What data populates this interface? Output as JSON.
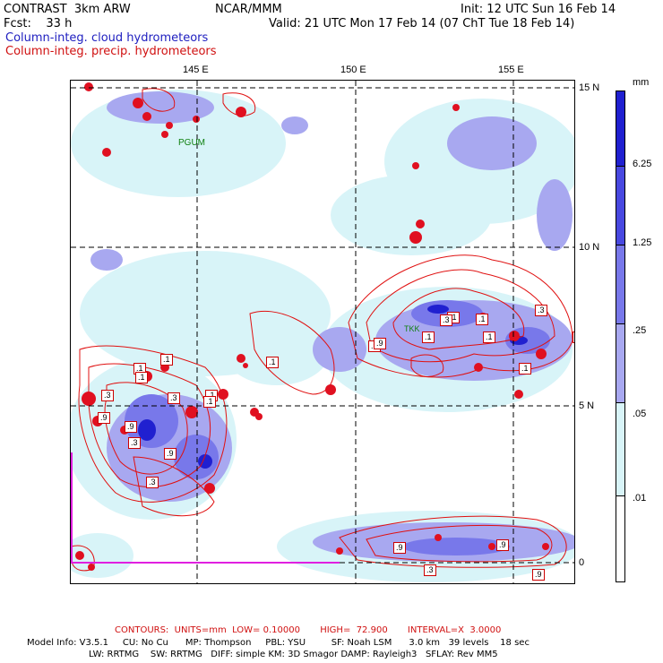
{
  "header": {
    "model": "CONTRAST  3km ARW",
    "org": "NCAR/MMM",
    "init": "Init: 12 UTC Sun 16 Feb 14",
    "fcst": "Fcst:    33 h",
    "valid": "Valid: 21 UTC Mon 17 Feb 14 (07 ChT Tue 18 Feb 14)",
    "line_blue": "Column-integ. cloud hydrometeors",
    "line_red": "Column-integ. precip. hydrometeors"
  },
  "axes": {
    "lon_labels": [
      "145 E",
      "150 E",
      "155 E"
    ],
    "lat_labels": [
      "15 N",
      "10 N",
      "5 N",
      "0"
    ]
  },
  "map": {
    "station_label": "PGUM",
    "station2_label": "TKK",
    "contour_labels": [
      ".1",
      ".1",
      ".3",
      ".1",
      ".1",
      ".3",
      ".9",
      ".9",
      ".3",
      ".9",
      ".1",
      ".1",
      ".3",
      ".9",
      ".1",
      ".1",
      ".1",
      ".3",
      ".9",
      ".3",
      ".1",
      ".1",
      ".9",
      ".9",
      ".3",
      ".9",
      ".3"
    ]
  },
  "colorbar": {
    "unit": "mm",
    "labels": [
      "6.25",
      "1.25",
      ".25",
      ".05",
      ".01"
    ],
    "colors": [
      "#2020d0",
      "#4848e0",
      "#7878ea",
      "#a8a8f0",
      "#d8f4f8",
      "#ffffff"
    ]
  },
  "footer": {
    "contours": "CONTOURS:  UNITS=mm  LOW= 0.10000       HIGH=  72.900       INTERVAL=X  3.0000",
    "model_info": "Model Info: V3.5.1     CU: No Cu      MP: Thompson     PBL: YSU         SF: Noah LSM      3.0 km   39 levels    18 sec",
    "model_info2": "LW: RRTMG    SW: RRTMG   DIFF: simple KM: 3D Smagor DAMP: Rayleigh3   SFLAY: Rev MM5"
  }
}
